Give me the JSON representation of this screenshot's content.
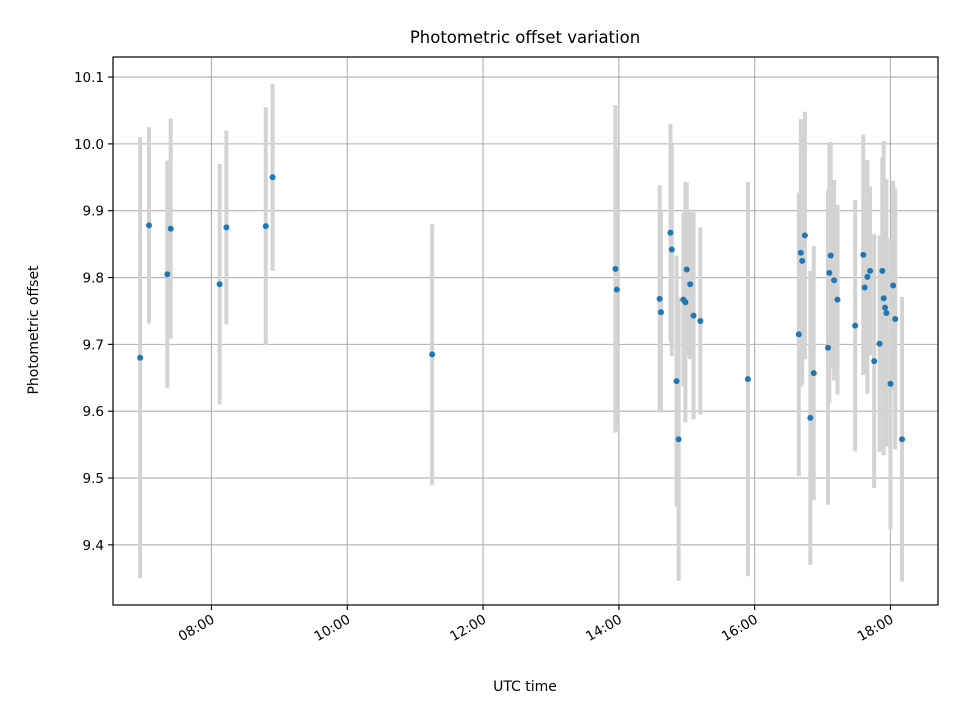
{
  "chart_data": {
    "type": "scatter",
    "title": "Photometric offset variation",
    "xlabel": "UTC time",
    "ylabel": "Photometric offset",
    "x_unit": "UTC hour of day",
    "xlim": [
      6.55,
      18.7
    ],
    "ylim": [
      9.31,
      10.13
    ],
    "xticks": [
      {
        "value": 8,
        "label": "08:00"
      },
      {
        "value": 10,
        "label": "10:00"
      },
      {
        "value": 12,
        "label": "12:00"
      },
      {
        "value": 14,
        "label": "14:00"
      },
      {
        "value": 16,
        "label": "16:00"
      },
      {
        "value": 18,
        "label": "18:00"
      }
    ],
    "yticks": [
      {
        "value": 9.4,
        "label": "9.4"
      },
      {
        "value": 9.5,
        "label": "9.5"
      },
      {
        "value": 9.6,
        "label": "9.6"
      },
      {
        "value": 9.7,
        "label": "9.7"
      },
      {
        "value": 9.8,
        "label": "9.8"
      },
      {
        "value": 9.9,
        "label": "9.9"
      },
      {
        "value": 10.0,
        "label": "10.0"
      },
      {
        "value": 10.1,
        "label": "10.1"
      }
    ],
    "grid": true,
    "colors": {
      "marker": "#1f77b4",
      "errorbar": "#d3d3d3",
      "grid": "#b0b0b0",
      "axes": "#000000"
    },
    "series": [
      {
        "x": [
          6.95,
          7.08,
          7.35,
          7.4,
          8.12,
          8.22,
          8.8,
          8.9,
          11.25,
          13.95,
          13.97,
          14.6,
          14.62,
          14.76,
          14.78,
          14.85,
          14.88,
          14.95,
          14.98,
          15.0,
          15.05,
          15.1,
          15.2,
          15.9,
          16.65,
          16.68,
          16.7,
          16.74,
          16.82,
          16.87,
          17.08,
          17.1,
          17.12,
          17.17,
          17.22,
          17.48,
          17.6,
          17.62,
          17.66,
          17.7,
          17.76,
          17.84,
          17.88,
          17.9,
          17.92,
          17.94,
          18.0,
          18.04,
          18.07,
          18.17
        ],
        "y": [
          9.68,
          9.878,
          9.805,
          9.873,
          9.79,
          9.875,
          9.877,
          9.95,
          9.685,
          9.813,
          9.782,
          9.768,
          9.748,
          9.867,
          9.842,
          9.645,
          9.558,
          9.767,
          9.763,
          9.812,
          9.79,
          9.743,
          9.735,
          9.648,
          9.715,
          9.837,
          9.825,
          9.863,
          9.59,
          9.657,
          9.695,
          9.807,
          9.833,
          9.796,
          9.767,
          9.728,
          9.834,
          9.785,
          9.801,
          9.81,
          9.675,
          9.701,
          9.81,
          9.769,
          9.755,
          9.747,
          9.641,
          9.788,
          9.738,
          9.558
        ],
        "error": [
          0.33,
          0.147,
          0.17,
          0.165,
          0.18,
          0.145,
          0.178,
          0.14,
          0.195,
          0.245,
          0.21,
          0.17,
          0.15,
          0.163,
          0.16,
          0.188,
          0.212,
          0.13,
          0.18,
          0.13,
          0.112,
          0.155,
          0.14,
          0.295,
          0.212,
          0.2,
          0.185,
          0.185,
          0.22,
          0.19,
          0.235,
          0.195,
          0.17,
          0.15,
          0.142,
          0.188,
          0.18,
          0.13,
          0.175,
          0.126,
          0.19,
          0.162,
          0.17,
          0.235,
          0.174,
          0.2,
          0.218,
          0.157,
          0.195,
          0.213
        ]
      }
    ]
  }
}
